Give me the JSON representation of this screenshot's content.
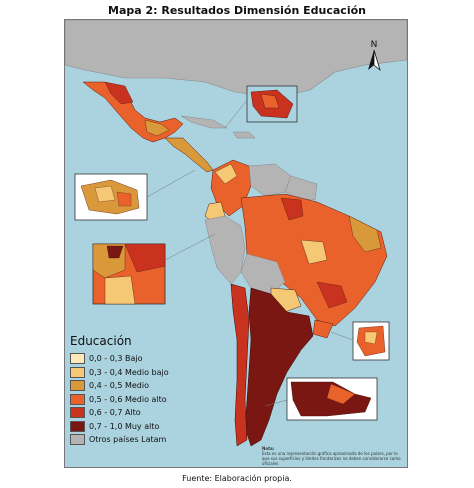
{
  "title": "Mapa 2: Resultados Dimensión Educación",
  "legend": {
    "title": "Educación",
    "items": [
      {
        "label": "0,0 - 0,3 Bajo",
        "color": "#fde9b9"
      },
      {
        "label": "0,3 - 0,4 Medio bajo",
        "color": "#f5c876"
      },
      {
        "label": "0,4 - 0,5 Medio",
        "color": "#d9983a"
      },
      {
        "label": "0,5 - 0,6 Medio alto",
        "color": "#e9622c"
      },
      {
        "label": "0,6 - 0,7 Alto",
        "color": "#c8321f"
      },
      {
        "label": "0,7 - 1,0 Muy alto",
        "color": "#7a1712"
      },
      {
        "label": "Otros países Latam",
        "color": "#b4b4b4"
      }
    ]
  },
  "north_label": "N",
  "note": {
    "line1": "Nota:",
    "line2": "Esta es una representación gráfica aproximada de los países, por lo que sus superficies y límites fronterizos no deben considerarse como oficiales"
  },
  "source": "Fuente: Elaboración propia.",
  "colors": {
    "ocean": "#aad3df",
    "other_land": "#b4b4b4"
  }
}
